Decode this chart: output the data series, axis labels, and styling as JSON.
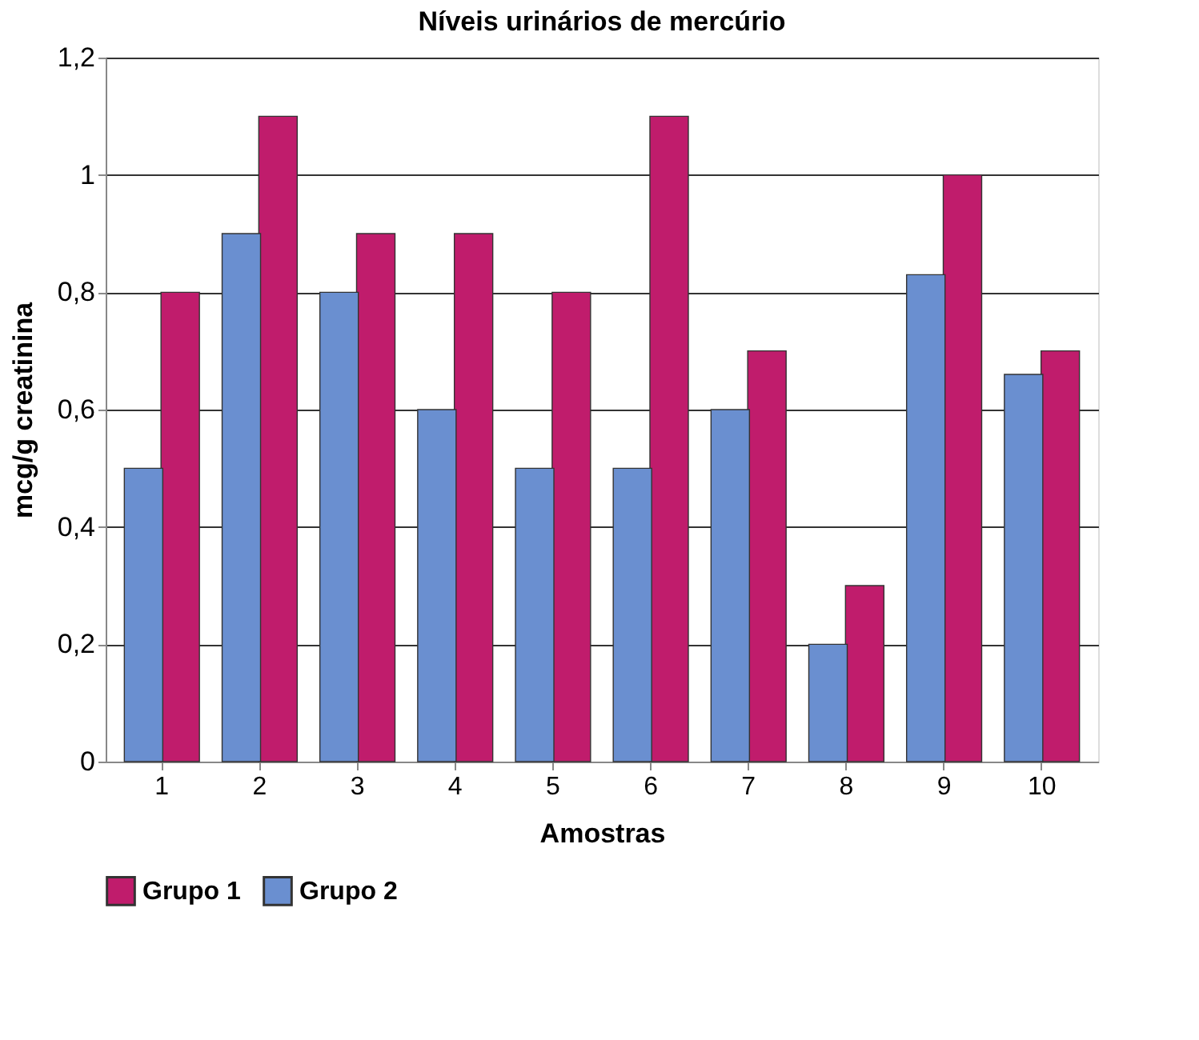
{
  "chart_data": {
    "type": "bar",
    "title": "Níveis urinários de mercúrio",
    "xlabel": "Amostras",
    "ylabel": "mcg/g creatinina",
    "categories": [
      "1",
      "2",
      "3",
      "4",
      "5",
      "6",
      "7",
      "8",
      "9",
      "10"
    ],
    "series": [
      {
        "name": "Grupo 1",
        "color": "#c01c6c",
        "values": [
          0.8,
          1.1,
          0.9,
          0.9,
          0.8,
          1.1,
          0.7,
          0.3,
          1.0,
          0.7
        ]
      },
      {
        "name": "Grupo 2",
        "color": "#6a8fd0",
        "values": [
          0.5,
          0.9,
          0.8,
          0.6,
          0.5,
          0.5,
          0.6,
          0.2,
          0.83,
          0.66
        ]
      }
    ],
    "ylim": [
      0,
      1.2
    ],
    "yticks": [
      0,
      {
        "value": 0.2,
        "label": "0,2"
      },
      {
        "value": 0.4,
        "label": "0,4"
      },
      {
        "value": 0.6,
        "label": "0,6"
      },
      {
        "value": 0.8,
        "label": "0,8"
      },
      1,
      {
        "value": 1.2,
        "label": "1,2"
      }
    ],
    "grid": "y",
    "legend": "bottom"
  }
}
